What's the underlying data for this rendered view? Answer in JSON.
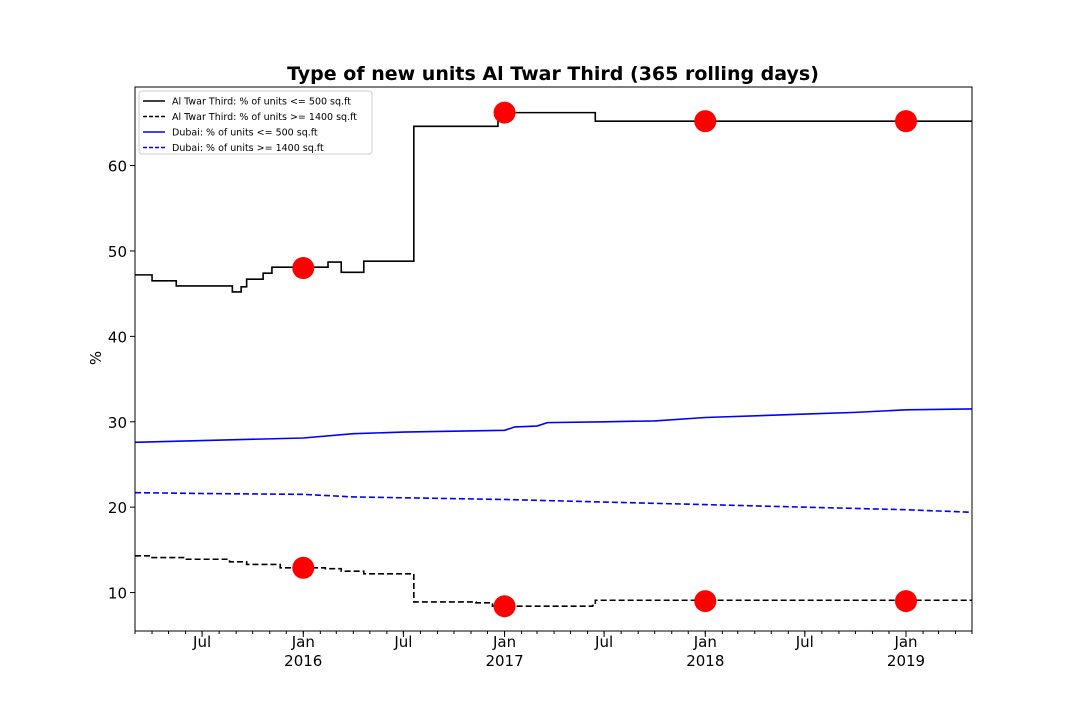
{
  "chart_data": {
    "type": "line",
    "title": "Type of new units Al Twar Third (365 rolling days)",
    "xlabel": "",
    "ylabel": "%",
    "x_range": [
      "2015-03-01",
      "2019-05-01"
    ],
    "ylim": [
      5.5,
      69.2
    ],
    "y_ticks": [
      10,
      20,
      30,
      40,
      50,
      60
    ],
    "x_ticks": [
      {
        "date": "2015-07-01",
        "label": "Jul",
        "sublabel": ""
      },
      {
        "date": "2016-01-01",
        "label": "Jan",
        "sublabel": "2016"
      },
      {
        "date": "2016-07-01",
        "label": "Jul",
        "sublabel": ""
      },
      {
        "date": "2017-01-01",
        "label": "Jan",
        "sublabel": "2017"
      },
      {
        "date": "2017-07-01",
        "label": "Jul",
        "sublabel": ""
      },
      {
        "date": "2018-01-01",
        "label": "Jan",
        "sublabel": "2018"
      },
      {
        "date": "2018-07-01",
        "label": "Jul",
        "sublabel": ""
      },
      {
        "date": "2019-01-01",
        "label": "Jan",
        "sublabel": "2019"
      }
    ],
    "grid": false,
    "legend_position": "top-left",
    "series": [
      {
        "name": "Al Twar Third: % of units <= 500 sq.ft",
        "color": "#000000",
        "style": "solid",
        "step": true,
        "x": [
          "2015-03-01",
          "2015-04-01",
          "2015-05-15",
          "2015-08-25",
          "2015-09-10",
          "2015-09-20",
          "2015-10-20",
          "2015-11-05",
          "2016-01-20",
          "2016-02-15",
          "2016-03-10",
          "2016-04-20",
          "2016-07-15",
          "2016-07-20",
          "2016-12-15",
          "2016-12-20",
          "2017-06-10",
          "2017-06-15",
          "2019-05-01"
        ],
        "y": [
          47.2,
          46.5,
          45.9,
          45.2,
          45.8,
          46.7,
          47.4,
          48.1,
          48.1,
          48.7,
          47.5,
          48.8,
          48.8,
          64.6,
          64.6,
          66.2,
          66.2,
          65.2,
          65.2
        ]
      },
      {
        "name": "Al Twar Third: % of units >= 1400 sq.ft",
        "color": "#000000",
        "style": "dashed",
        "step": true,
        "x": [
          "2015-03-01",
          "2015-04-01",
          "2015-06-01",
          "2015-08-20",
          "2015-09-20",
          "2015-11-20",
          "2016-02-10",
          "2016-03-10",
          "2016-04-20",
          "2016-07-15",
          "2016-07-20",
          "2016-11-10",
          "2016-12-10",
          "2017-06-10",
          "2017-06-15",
          "2019-05-01"
        ],
        "y": [
          14.3,
          14.1,
          13.9,
          13.6,
          13.3,
          12.9,
          12.8,
          12.5,
          12.2,
          12.2,
          8.9,
          8.8,
          8.4,
          8.5,
          9.1,
          9.1
        ]
      },
      {
        "name": "Dubai: % of units <= 500 sq.ft",
        "color": "#0000ff",
        "style": "solid",
        "step": false,
        "x": [
          "2015-03-01",
          "2015-07-01",
          "2016-01-01",
          "2016-04-01",
          "2016-07-01",
          "2016-10-01",
          "2017-01-01",
          "2017-01-20",
          "2017-03-01",
          "2017-03-20",
          "2017-07-01",
          "2017-10-01",
          "2018-01-01",
          "2018-07-01",
          "2018-10-01",
          "2019-01-01",
          "2019-05-01"
        ],
        "y": [
          27.6,
          27.8,
          28.1,
          28.6,
          28.8,
          28.9,
          29.0,
          29.4,
          29.5,
          29.9,
          30.0,
          30.1,
          30.5,
          30.9,
          31.1,
          31.4,
          31.5
        ]
      },
      {
        "name": "Dubai: % of units >= 1400 sq.ft",
        "color": "#0000ff",
        "style": "dashed",
        "step": false,
        "x": [
          "2015-03-01",
          "2015-07-01",
          "2016-01-01",
          "2016-04-01",
          "2016-07-01",
          "2017-01-01",
          "2017-07-01",
          "2018-01-01",
          "2018-07-01",
          "2019-01-01",
          "2019-05-01"
        ],
        "y": [
          21.7,
          21.6,
          21.5,
          21.2,
          21.1,
          20.9,
          20.6,
          20.3,
          20.0,
          19.7,
          19.4
        ]
      }
    ],
    "markers": {
      "color": "#ff0000",
      "points": [
        {
          "x": "2016-01-01",
          "y": 48.0
        },
        {
          "x": "2017-01-01",
          "y": 66.2
        },
        {
          "x": "2018-01-01",
          "y": 65.2
        },
        {
          "x": "2019-01-01",
          "y": 65.2
        },
        {
          "x": "2016-01-01",
          "y": 12.9
        },
        {
          "x": "2017-01-01",
          "y": 8.4
        },
        {
          "x": "2018-01-01",
          "y": 9.0
        },
        {
          "x": "2019-01-01",
          "y": 9.0
        }
      ]
    }
  }
}
